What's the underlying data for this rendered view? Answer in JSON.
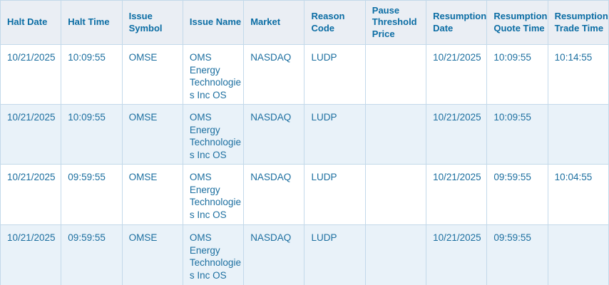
{
  "colors": {
    "header_bg": "#eaeef4",
    "header_text": "#0b6da4",
    "cell_text": "#1c6fa0",
    "alt_row_bg": "#e9f2f9",
    "border": "#c3d9ea"
  },
  "table": {
    "columns": [
      "Halt Date",
      "Halt Time",
      "Issue Symbol",
      "Issue Name",
      "Market",
      "Reason Code",
      "Pause Threshold Price",
      "Resumption Date",
      "Resumption Quote Time",
      "Resumption Trade Time"
    ],
    "rows": [
      [
        "10/21/2025",
        "10:09:55",
        "OMSE",
        "OMS Energy Technologies Inc OS",
        "NASDAQ",
        "LUDP",
        "",
        "10/21/2025",
        "10:09:55",
        "10:14:55"
      ],
      [
        "10/21/2025",
        "10:09:55",
        "OMSE",
        "OMS Energy Technologies Inc OS",
        "NASDAQ",
        "LUDP",
        "",
        "10/21/2025",
        "10:09:55",
        ""
      ],
      [
        "10/21/2025",
        "09:59:55",
        "OMSE",
        "OMS Energy Technologies Inc OS",
        "NASDAQ",
        "LUDP",
        "",
        "10/21/2025",
        "09:59:55",
        "10:04:55"
      ],
      [
        "10/21/2025",
        "09:59:55",
        "OMSE",
        "OMS Energy Technologies Inc OS",
        "NASDAQ",
        "LUDP",
        "",
        "10/21/2025",
        "09:59:55",
        ""
      ]
    ]
  }
}
